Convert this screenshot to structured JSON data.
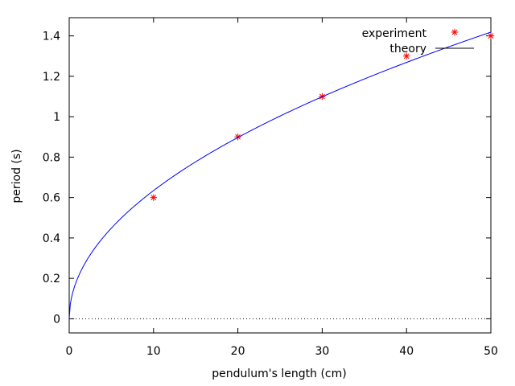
{
  "chart_data": {
    "type": "scatter",
    "xlabel": "pendulum's length (cm)",
    "ylabel": "period (s)",
    "xlim": [
      0,
      50
    ],
    "ylim": [
      -0.07,
      1.49
    ],
    "xticks": [
      0,
      10,
      20,
      30,
      40,
      50
    ],
    "yticks": [
      0,
      0.2,
      0.4,
      0.6,
      0.8,
      1,
      1.2,
      1.4
    ],
    "grid": false,
    "legend_position": "top-right",
    "zero_line": "dotted",
    "series": [
      {
        "name": "experiment",
        "kind": "points",
        "marker": "asterisk",
        "color": "#ff0000",
        "x": [
          10,
          20,
          30,
          40,
          50
        ],
        "y": [
          0.6,
          0.9,
          1.1,
          1.3,
          1.4
        ]
      },
      {
        "name": "theory",
        "kind": "line",
        "color": "#0000ff",
        "legend_color": "#000000",
        "function": "2*pi*sqrt(L/g)",
        "g": 981,
        "x": [
          0,
          0.2,
          0.5,
          1,
          2,
          3,
          4,
          5,
          7.5,
          10,
          12.5,
          15,
          17.5,
          20,
          22.5,
          25,
          27.5,
          30,
          32.5,
          35,
          37.5,
          40,
          42.5,
          45,
          47.5,
          50
        ],
        "y": [
          0,
          0.0897,
          0.1419,
          0.2006,
          0.2837,
          0.3475,
          0.4012,
          0.4486,
          0.5494,
          0.6344,
          0.7093,
          0.777,
          0.8392,
          0.8972,
          0.9516,
          1.0031,
          1.052,
          1.0988,
          1.1437,
          1.1869,
          1.2285,
          1.2688,
          1.3079,
          1.3458,
          1.3826,
          1.4185
        ]
      }
    ]
  }
}
